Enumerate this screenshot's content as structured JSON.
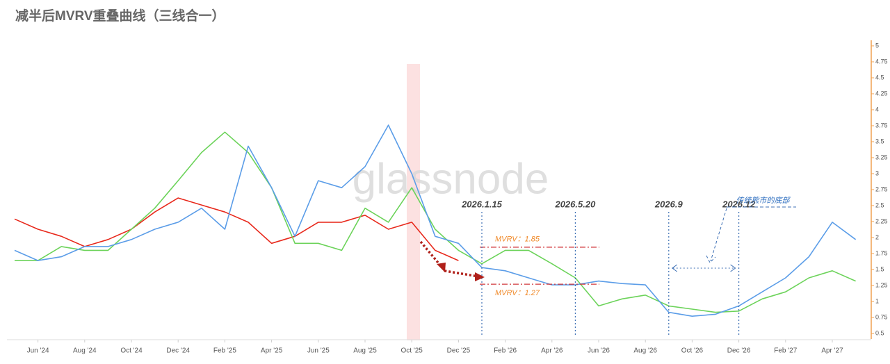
{
  "chart_data": {
    "type": "line",
    "title": "减半后MVRV重叠曲线（三线合一）",
    "watermark": "glassnode",
    "x": [
      "2024-05",
      "2024-06",
      "2024-07",
      "2024-08",
      "2024-09",
      "2024-10",
      "2024-11",
      "2024-12",
      "2025-01",
      "2025-02",
      "2025-03",
      "2025-04",
      "2025-05",
      "2025-06",
      "2025-07",
      "2025-08",
      "2025-09",
      "2025-10",
      "2025-11",
      "2025-12",
      "2026-01",
      "2026-02",
      "2026-03",
      "2026-04",
      "2026-05",
      "2026-06",
      "2026-07",
      "2026-08",
      "2026-09",
      "2026-10",
      "2026-11",
      "2026-12",
      "2027-01",
      "2027-02",
      "2027-03",
      "2027-04",
      "2027-05"
    ],
    "xticks": [
      {
        "value": "2024-06",
        "label": "Jun '24"
      },
      {
        "value": "2024-08",
        "label": "Aug '24"
      },
      {
        "value": "2024-10",
        "label": "Oct '24"
      },
      {
        "value": "2024-12",
        "label": "Dec '24"
      },
      {
        "value": "2025-02",
        "label": "Feb '25"
      },
      {
        "value": "2025-04",
        "label": "Apr '25"
      },
      {
        "value": "2025-06",
        "label": "Jun '25"
      },
      {
        "value": "2025-08",
        "label": "Aug '25"
      },
      {
        "value": "2025-10",
        "label": "Oct '25"
      },
      {
        "value": "2025-12",
        "label": "Dec '25"
      },
      {
        "value": "2026-02",
        "label": "Feb '26"
      },
      {
        "value": "2026-04",
        "label": "Apr '26"
      },
      {
        "value": "2026-06",
        "label": "Jun '26"
      },
      {
        "value": "2026-08",
        "label": "Aug '26"
      },
      {
        "value": "2026-10",
        "label": "Oct '26"
      },
      {
        "value": "2026-12",
        "label": "Dec '26"
      },
      {
        "value": "2027-02",
        "label": "Feb '27"
      },
      {
        "value": "2027-04",
        "label": "Apr '27"
      }
    ],
    "ylim": [
      0.5,
      5
    ],
    "yticks": [
      0.5,
      0.75,
      1,
      1.25,
      1.5,
      1.75,
      2,
      2.25,
      2.5,
      2.75,
      3,
      3.25,
      3.5,
      3.75,
      4,
      4.25,
      4.5,
      4.75,
      5
    ],
    "axis_color": "#f0a050",
    "series": [
      {
        "color": "#e8291c",
        "values": [
          2.29,
          2.13,
          2.02,
          1.86,
          1.97,
          2.13,
          2.4,
          2.62,
          2.51,
          2.4,
          2.24,
          1.91,
          2.02,
          2.24,
          2.24,
          2.35,
          2.13,
          2.24,
          1.8,
          1.64,
          null,
          null,
          null,
          null,
          null,
          null,
          null,
          null,
          null,
          null,
          null,
          null,
          null,
          null,
          null,
          null,
          null
        ]
      },
      {
        "color": "#6cd35a",
        "values": [
          1.64,
          1.64,
          1.86,
          1.8,
          1.8,
          2.13,
          2.46,
          2.89,
          3.33,
          3.65,
          3.33,
          2.78,
          1.91,
          1.91,
          1.8,
          2.46,
          2.24,
          2.78,
          2.13,
          1.8,
          1.59,
          1.8,
          1.8,
          1.59,
          1.37,
          0.93,
          1.04,
          1.1,
          0.93,
          0.88,
          0.83,
          0.85,
          1.04,
          1.15,
          1.37,
          1.48,
          1.32
        ]
      },
      {
        "color": "#5b9de8",
        "values": [
          1.8,
          1.64,
          1.7,
          1.86,
          1.86,
          1.97,
          2.13,
          2.24,
          2.46,
          2.13,
          3.43,
          2.78,
          2.02,
          2.89,
          2.78,
          3.11,
          3.76,
          3.0,
          2.02,
          1.91,
          1.53,
          1.48,
          1.37,
          1.26,
          1.26,
          1.32,
          1.28,
          1.26,
          0.83,
          0.77,
          0.8,
          0.93,
          1.15,
          1.37,
          1.7,
          2.24,
          1.97
        ]
      }
    ],
    "hlines": [
      {
        "value": 1.85,
        "label": "MVRV：1.85"
      },
      {
        "value": 1.27,
        "label": "MVRV：1.27"
      }
    ],
    "vlines": [
      {
        "x": "2026-01",
        "label": "2026.1.15"
      },
      {
        "x": "2026-05",
        "label": "2026.5.20"
      },
      {
        "x": "2026-09",
        "label": "2026.9"
      },
      {
        "x": "2026-12",
        "label": "2026.12"
      }
    ],
    "range_note": "传统熊市的底部"
  }
}
